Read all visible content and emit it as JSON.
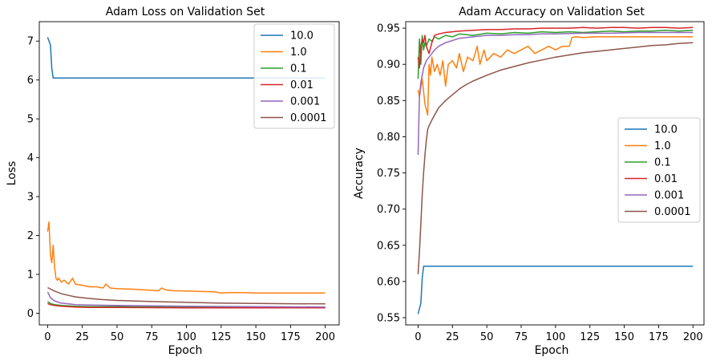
{
  "colors": [
    "#1f77b4",
    "#ff7f0e",
    "#2ca02c",
    "#d62728",
    "#9467bd",
    "#8c564b"
  ],
  "chart_data": [
    {
      "type": "line",
      "title": "Adam Loss on Validation Set",
      "xlabel": "Epoch",
      "ylabel": "Loss",
      "xlim": [
        -6,
        210
      ],
      "ylim": [
        -0.3,
        7.5
      ],
      "xticks": [
        0,
        25,
        50,
        75,
        100,
        125,
        150,
        175,
        200
      ],
      "yticks": [
        0,
        1,
        2,
        3,
        4,
        5,
        6,
        7
      ],
      "xtick_labels": [
        "0",
        "25",
        "50",
        "75",
        "100",
        "125",
        "150",
        "175",
        "200"
      ],
      "ytick_labels": [
        "0",
        "1",
        "2",
        "3",
        "4",
        "5",
        "6",
        "7"
      ],
      "legend_position": "top-right",
      "series": [
        {
          "name": "10.0",
          "x": [
            0,
            2,
            3,
            4,
            5,
            10,
            50,
            100,
            150,
            200
          ],
          "y": [
            7.1,
            6.9,
            6.3,
            6.05,
            6.05,
            6.05,
            6.05,
            6.05,
            6.05,
            6.05
          ]
        },
        {
          "name": "1.0",
          "x": [
            0,
            1,
            2,
            3,
            4,
            5,
            6,
            7,
            8,
            10,
            12,
            15,
            18,
            20,
            25,
            30,
            35,
            40,
            42,
            45,
            50,
            60,
            70,
            80,
            82,
            85,
            90,
            100,
            110,
            120,
            125,
            130,
            140,
            150,
            160,
            170,
            180,
            190,
            200
          ],
          "y": [
            2.1,
            2.35,
            1.5,
            1.3,
            1.75,
            1.2,
            0.9,
            0.85,
            0.9,
            0.8,
            0.85,
            0.75,
            0.9,
            0.75,
            0.72,
            0.68,
            0.68,
            0.65,
            0.75,
            0.65,
            0.63,
            0.62,
            0.6,
            0.58,
            0.65,
            0.6,
            0.58,
            0.57,
            0.56,
            0.55,
            0.52,
            0.53,
            0.53,
            0.52,
            0.52,
            0.52,
            0.52,
            0.52,
            0.52
          ]
        },
        {
          "name": "0.1",
          "x": [
            0,
            2,
            5,
            10,
            20,
            30,
            50,
            100,
            150,
            200
          ],
          "y": [
            0.3,
            0.25,
            0.22,
            0.2,
            0.18,
            0.17,
            0.17,
            0.16,
            0.16,
            0.16
          ]
        },
        {
          "name": "0.01",
          "x": [
            0,
            2,
            5,
            10,
            20,
            30,
            50,
            100,
            150,
            200
          ],
          "y": [
            0.25,
            0.22,
            0.2,
            0.18,
            0.16,
            0.15,
            0.15,
            0.14,
            0.14,
            0.14
          ]
        },
        {
          "name": "0.001",
          "x": [
            0,
            2,
            5,
            8,
            10,
            15,
            20,
            30,
            50,
            75,
            100,
            150,
            200
          ],
          "y": [
            0.55,
            0.4,
            0.32,
            0.28,
            0.26,
            0.24,
            0.22,
            0.21,
            0.2,
            0.19,
            0.18,
            0.17,
            0.16
          ]
        },
        {
          "name": "0.0001",
          "x": [
            0,
            5,
            10,
            15,
            20,
            30,
            40,
            50,
            75,
            100,
            125,
            150,
            175,
            200
          ],
          "y": [
            0.66,
            0.57,
            0.5,
            0.46,
            0.42,
            0.38,
            0.35,
            0.33,
            0.3,
            0.28,
            0.26,
            0.25,
            0.245,
            0.24
          ]
        }
      ]
    },
    {
      "type": "line",
      "title": "Adam Accuracy on Validation Set",
      "xlabel": "Epoch",
      "ylabel": "Accuracy",
      "xlim": [
        -9,
        208
      ],
      "ylim": [
        0.54,
        0.959
      ],
      "xticks": [
        0,
        25,
        50,
        75,
        100,
        125,
        150,
        175,
        200
      ],
      "yticks": [
        0.55,
        0.6,
        0.65,
        0.7,
        0.75,
        0.8,
        0.85,
        0.9,
        0.95
      ],
      "xtick_labels": [
        "0",
        "25",
        "50",
        "75",
        "100",
        "125",
        "150",
        "175",
        "200"
      ],
      "ytick_labels": [
        "0.55",
        "0.60",
        "0.65",
        "0.70",
        "0.75",
        "0.80",
        "0.85",
        "0.90",
        "0.95"
      ],
      "legend_position": "center-right",
      "series": [
        {
          "name": "10.0",
          "x": [
            0,
            2,
            3,
            4,
            5,
            10,
            50,
            100,
            150,
            200
          ],
          "y": [
            0.555,
            0.57,
            0.605,
            0.621,
            0.621,
            0.621,
            0.621,
            0.621,
            0.621,
            0.621
          ]
        },
        {
          "name": "1.0",
          "x": [
            0,
            1,
            3,
            5,
            7,
            8,
            9,
            10,
            12,
            14,
            16,
            18,
            20,
            22,
            25,
            28,
            30,
            33,
            36,
            40,
            43,
            45,
            48,
            50,
            55,
            60,
            65,
            70,
            75,
            80,
            85,
            90,
            95,
            100,
            105,
            110,
            112,
            115,
            120,
            130,
            140,
            150,
            160,
            170,
            180,
            190,
            200
          ],
          "y": [
            0.865,
            0.855,
            0.88,
            0.845,
            0.83,
            0.9,
            0.885,
            0.91,
            0.89,
            0.9,
            0.885,
            0.905,
            0.87,
            0.9,
            0.905,
            0.895,
            0.915,
            0.89,
            0.91,
            0.905,
            0.925,
            0.9,
            0.92,
            0.905,
            0.915,
            0.91,
            0.92,
            0.915,
            0.92,
            0.925,
            0.915,
            0.92,
            0.925,
            0.92,
            0.925,
            0.925,
            0.937,
            0.938,
            0.937,
            0.938,
            0.938,
            0.938,
            0.938,
            0.938,
            0.938,
            0.938,
            0.938
          ]
        },
        {
          "name": "0.1",
          "x": [
            0,
            1,
            2,
            3,
            4,
            5,
            6,
            8,
            10,
            12,
            15,
            20,
            25,
            30,
            40,
            50,
            60,
            70,
            80,
            90,
            100,
            110,
            120,
            130,
            140,
            150,
            160,
            170,
            180,
            190,
            200
          ],
          "y": [
            0.88,
            0.935,
            0.9,
            0.94,
            0.92,
            0.93,
            0.925,
            0.935,
            0.932,
            0.938,
            0.935,
            0.94,
            0.938,
            0.942,
            0.94,
            0.943,
            0.942,
            0.944,
            0.943,
            0.945,
            0.944,
            0.945,
            0.944,
            0.945,
            0.946,
            0.945,
            0.946,
            0.946,
            0.947,
            0.946,
            0.947
          ]
        },
        {
          "name": "0.01",
          "x": [
            0,
            1,
            2,
            3,
            4,
            5,
            6,
            8,
            10,
            12,
            15,
            20,
            25,
            30,
            40,
            50,
            60,
            70,
            80,
            90,
            100,
            110,
            120,
            130,
            140,
            150,
            160,
            170,
            180,
            190,
            200
          ],
          "y": [
            0.91,
            0.895,
            0.925,
            0.935,
            0.93,
            0.94,
            0.925,
            0.915,
            0.93,
            0.94,
            0.942,
            0.944,
            0.945,
            0.946,
            0.947,
            0.948,
            0.948,
            0.949,
            0.949,
            0.95,
            0.95,
            0.95,
            0.951,
            0.95,
            0.951,
            0.951,
            0.95,
            0.951,
            0.951,
            0.95,
            0.951
          ]
        },
        {
          "name": "0.001",
          "x": [
            0,
            1,
            2,
            3,
            4,
            5,
            6,
            8,
            10,
            12,
            15,
            20,
            25,
            30,
            40,
            50,
            60,
            70,
            80,
            90,
            100,
            120,
            140,
            160,
            180,
            200
          ],
          "y": [
            0.775,
            0.855,
            0.875,
            0.885,
            0.895,
            0.9,
            0.905,
            0.91,
            0.915,
            0.92,
            0.925,
            0.93,
            0.933,
            0.936,
            0.938,
            0.94,
            0.94,
            0.941,
            0.941,
            0.942,
            0.942,
            0.943,
            0.943,
            0.944,
            0.944,
            0.944
          ]
        },
        {
          "name": "0.0001",
          "x": [
            0,
            1,
            2,
            3,
            4,
            5,
            6,
            7,
            8,
            10,
            12,
            15,
            20,
            25,
            30,
            35,
            40,
            50,
            60,
            70,
            80,
            90,
            100,
            110,
            120,
            130,
            140,
            150,
            160,
            170,
            180,
            190,
            200
          ],
          "y": [
            0.61,
            0.64,
            0.68,
            0.72,
            0.75,
            0.775,
            0.795,
            0.81,
            0.815,
            0.823,
            0.83,
            0.84,
            0.85,
            0.858,
            0.866,
            0.872,
            0.877,
            0.885,
            0.892,
            0.897,
            0.902,
            0.906,
            0.91,
            0.913,
            0.916,
            0.918,
            0.92,
            0.922,
            0.924,
            0.926,
            0.927,
            0.929,
            0.93
          ]
        }
      ]
    }
  ]
}
